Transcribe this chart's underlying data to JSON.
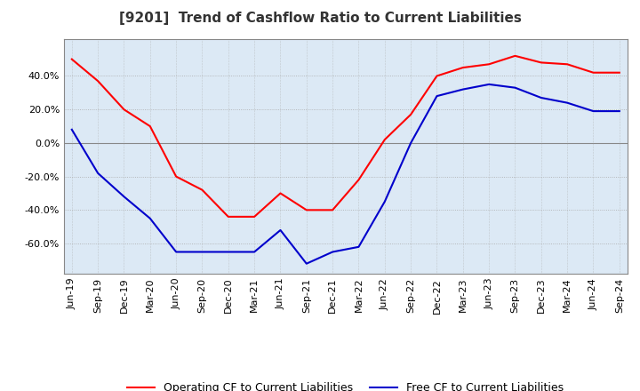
{
  "title": "[9201]  Trend of Cashflow Ratio to Current Liabilities",
  "background_color": "#ffffff",
  "plot_bg_color": "#dce9f5",
  "grid_color_solid": "#888888",
  "grid_color_dot": "#aaaaaa",
  "x_labels": [
    "Jun-19",
    "Sep-19",
    "Dec-19",
    "Mar-20",
    "Jun-20",
    "Sep-20",
    "Dec-20",
    "Mar-21",
    "Jun-21",
    "Sep-21",
    "Dec-21",
    "Mar-22",
    "Jun-22",
    "Sep-22",
    "Dec-22",
    "Mar-23",
    "Jun-23",
    "Sep-23",
    "Dec-23",
    "Mar-24",
    "Jun-24",
    "Sep-24"
  ],
  "operating_cf": [
    50.0,
    37.0,
    20.0,
    10.0,
    -20.0,
    -28.0,
    -44.0,
    -44.0,
    -30.0,
    -40.0,
    -40.0,
    -22.0,
    2.0,
    17.0,
    40.0,
    45.0,
    47.0,
    52.0,
    48.0,
    47.0,
    42.0,
    42.0
  ],
  "free_cf": [
    8.0,
    -18.0,
    -32.0,
    -45.0,
    -65.0,
    -65.0,
    -65.0,
    -65.0,
    -52.0,
    -72.0,
    -65.0,
    -62.0,
    -35.0,
    0.0,
    28.0,
    32.0,
    35.0,
    33.0,
    27.0,
    24.0,
    19.0,
    19.0
  ],
  "operating_color": "#ff0000",
  "free_color": "#0000cc",
  "ylim": [
    -78,
    62
  ],
  "yticks": [
    -60,
    -40,
    -20,
    0,
    20,
    40
  ],
  "title_fontsize": 11,
  "legend_fontsize": 9,
  "tick_fontsize": 8
}
